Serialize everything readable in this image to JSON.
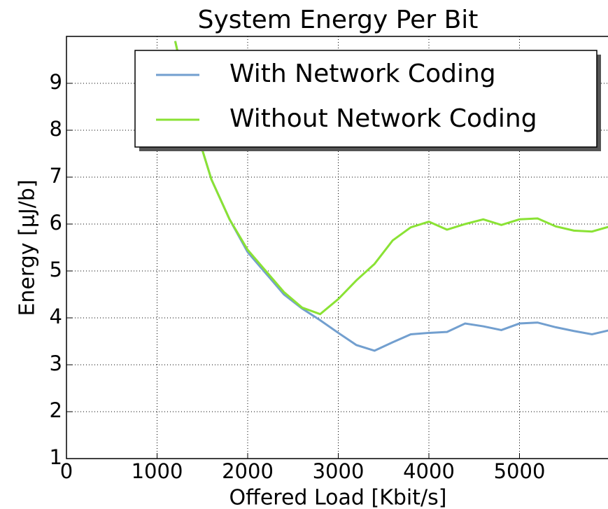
{
  "chart_data": {
    "type": "line",
    "title": "System Energy Per Bit",
    "x_label": "Offered Load [Kbit/s]",
    "y_label": "Energy [μJ/b]",
    "x": [
      1200,
      1400,
      1600,
      1800,
      2000,
      2200,
      2400,
      2600,
      2800,
      3000,
      3200,
      3400,
      3600,
      3800,
      4000,
      4200,
      4400,
      4600,
      4800,
      5000,
      5200,
      5400,
      5600,
      5800,
      6000
    ],
    "series": [
      {
        "name": "With Network Coding",
        "color": "#729fcf",
        "values": [
          9.9,
          8.2,
          6.95,
          6.1,
          5.4,
          4.95,
          4.5,
          4.2,
          3.95,
          3.68,
          3.42,
          3.3,
          3.48,
          3.65,
          3.68,
          3.7,
          3.88,
          3.82,
          3.74,
          3.88,
          3.9,
          3.8,
          3.72,
          3.65,
          3.74
        ]
      },
      {
        "name": "Without Network Coding",
        "color": "#8ae234",
        "values": [
          9.9,
          8.2,
          6.95,
          6.1,
          5.45,
          5.0,
          4.55,
          4.22,
          4.08,
          4.4,
          4.8,
          5.15,
          5.65,
          5.93,
          6.05,
          5.88,
          6.0,
          6.1,
          5.98,
          6.1,
          6.12,
          5.95,
          5.86,
          5.84,
          5.95
        ]
      }
    ],
    "xlim": [
      0,
      6000
    ],
    "xticks": [
      0,
      1000,
      2000,
      3000,
      4000,
      5000
    ],
    "ylim": [
      1,
      10
    ],
    "yticks": [
      1,
      2,
      3,
      4,
      5,
      6,
      7,
      8,
      9
    ],
    "grid": true,
    "legend": "upper right"
  }
}
